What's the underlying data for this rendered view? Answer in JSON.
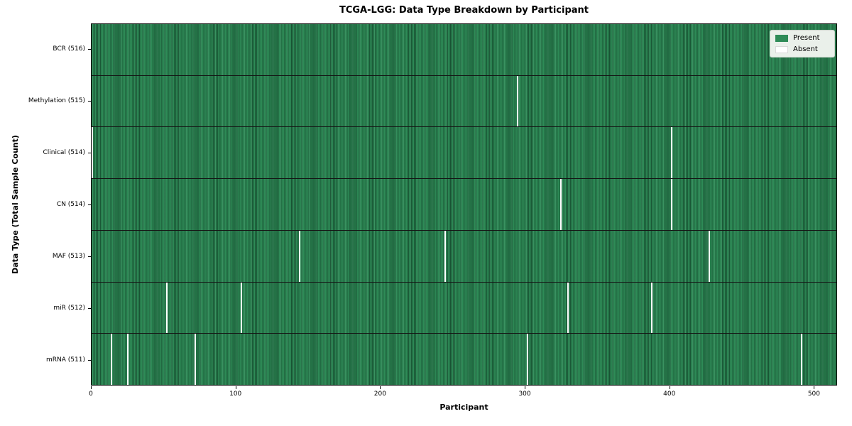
{
  "chart_data": {
    "type": "heatmap",
    "title": "TCGA-LGG: Data Type Breakdown by Participant",
    "xlabel": "Participant",
    "ylabel": "Data Type (Total Sample Count)",
    "n_participants": 516,
    "x_range": [
      0,
      516
    ],
    "x_ticks": [
      "0",
      "100",
      "200",
      "300",
      "400",
      "500"
    ],
    "grid": false,
    "legend_position": "upper right",
    "colors": {
      "present": "#2e8b57",
      "absent": "#ffffff"
    },
    "legend_items": [
      {
        "label": "Present",
        "color": "#2e8b57"
      },
      {
        "label": "Absent",
        "color": "#ffffff"
      }
    ],
    "rows": [
      {
        "label": "BCR (516)",
        "data_type": "BCR",
        "total_samples": 516,
        "absent_count": 0,
        "absent_participants": []
      },
      {
        "label": "Methylation (515)",
        "data_type": "Methylation",
        "total_samples": 515,
        "absent_count": 1,
        "absent_participants": [
          295
        ]
      },
      {
        "label": "Clinical (514)",
        "data_type": "Clinical",
        "total_samples": 514,
        "absent_count": 2,
        "absent_participants": [
          0,
          402
        ]
      },
      {
        "label": "CN (514)",
        "data_type": "CN",
        "total_samples": 514,
        "absent_count": 2,
        "absent_participants": [
          325,
          402
        ]
      },
      {
        "label": "MAF (513)",
        "data_type": "MAF",
        "total_samples": 513,
        "absent_count": 3,
        "absent_participants": [
          144,
          245,
          428
        ]
      },
      {
        "label": "miR (512)",
        "data_type": "miR",
        "total_samples": 512,
        "absent_count": 4,
        "absent_participants": [
          52,
          104,
          330,
          388
        ]
      },
      {
        "label": "mRNA (511)",
        "data_type": "mRNA",
        "total_samples": 511,
        "absent_count": 5,
        "absent_participants": [
          14,
          25,
          72,
          302,
          492
        ]
      }
    ]
  }
}
